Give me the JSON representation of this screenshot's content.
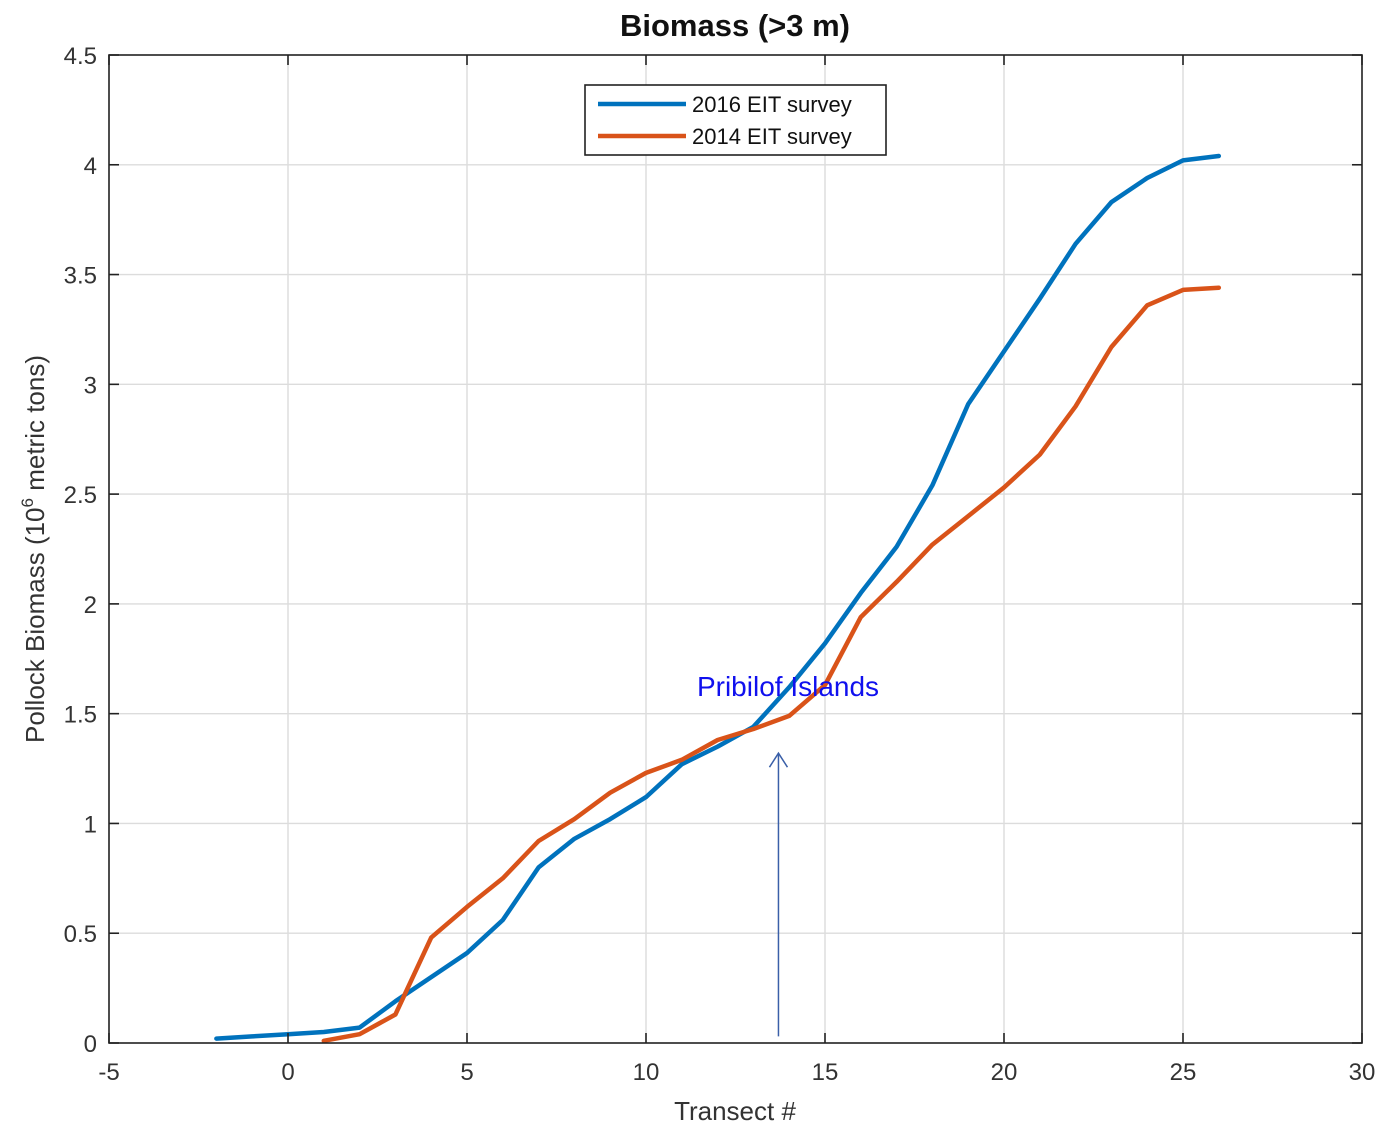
{
  "chart_data": {
    "type": "line",
    "title": "Biomass (>3 m)",
    "xlabel": "Transect #",
    "ylabel_main": "Pollock Biomass (10",
    "ylabel_sup": "6",
    "ylabel_tail": " metric tons)",
    "xlim": [
      -5,
      30
    ],
    "ylim": [
      0,
      4.5
    ],
    "xticks": [
      -5,
      0,
      5,
      10,
      15,
      20,
      25,
      30
    ],
    "yticks": [
      0,
      0.5,
      1,
      1.5,
      2,
      2.5,
      3,
      3.5,
      4,
      4.5
    ],
    "grid": true,
    "legend_position": "top-center",
    "series": [
      {
        "name": "2016 EIT survey",
        "color": "#0072BD",
        "x": [
          -2,
          -1,
          0,
          1,
          2,
          3,
          4,
          5,
          6,
          7,
          8,
          9,
          10,
          11,
          12,
          13,
          14,
          15,
          16,
          17,
          18,
          19,
          20,
          21,
          22,
          23,
          24,
          25,
          26
        ],
        "y": [
          0.02,
          0.03,
          0.04,
          0.05,
          0.07,
          0.19,
          0.3,
          0.41,
          0.56,
          0.8,
          0.93,
          1.02,
          1.12,
          1.27,
          1.35,
          1.44,
          1.62,
          1.82,
          2.05,
          2.26,
          2.54,
          2.91,
          3.15,
          3.39,
          3.64,
          3.83,
          3.94,
          4.02,
          4.04
        ]
      },
      {
        "name": "2014 EIT survey",
        "color": "#D95319",
        "x": [
          1,
          2,
          3,
          4,
          5,
          6,
          7,
          8,
          9,
          10,
          11,
          12,
          13,
          14,
          15,
          16,
          17,
          18,
          19,
          20,
          21,
          22,
          23,
          24,
          25,
          26
        ],
        "y": [
          0.01,
          0.04,
          0.13,
          0.48,
          0.62,
          0.75,
          0.92,
          1.02,
          1.14,
          1.23,
          1.29,
          1.38,
          1.43,
          1.49,
          1.63,
          1.94,
          2.1,
          2.27,
          2.4,
          2.53,
          2.68,
          2.9,
          3.17,
          3.36,
          3.43,
          3.44
        ]
      }
    ],
    "annotations": [
      {
        "text": "Pribilof Islands",
        "color": "#1010ee",
        "arrow_x": 13.7,
        "arrow_from_y": 0.03,
        "arrow_to_y": 1.32
      }
    ]
  }
}
